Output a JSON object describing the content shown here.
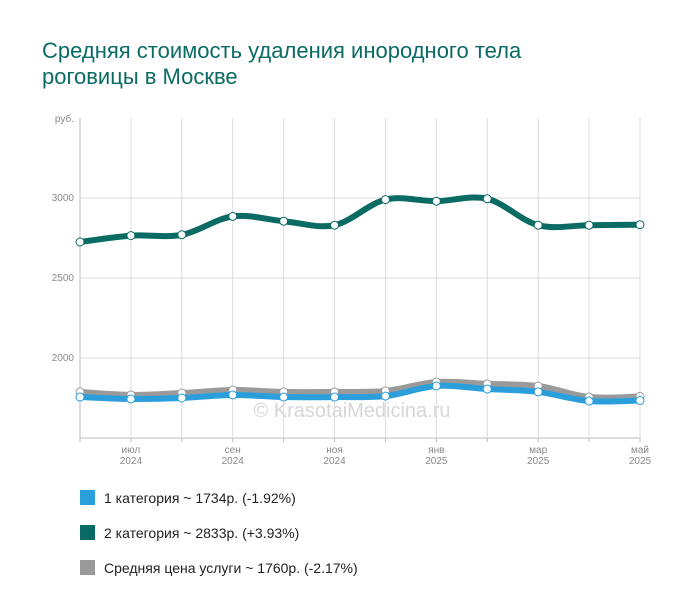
{
  "chart_data": {
    "type": "line",
    "title": [
      "Средняя стоимость удаления инородного тела",
      "роговицы в Москве"
    ],
    "y_unit": "руб.",
    "watermark": "© KrasotaiMedicina.ru",
    "categories": [
      null,
      "июл 2024",
      null,
      "сен 2024",
      null,
      "ноя 2024",
      null,
      "янв 2025",
      null,
      "мар 2025",
      null,
      "май 2025"
    ],
    "series": [
      {
        "name": "1 категория ~ 1734р. (-1.92%)",
        "color": "#2b9fdc",
        "values": [
          1756,
          1744,
          1750,
          1769,
          1756,
          1756,
          1762,
          1825,
          1806,
          1788,
          1731,
          1734
        ]
      },
      {
        "name": "2 категория ~ 2833р. (+3.93%)",
        "color": "#0a6b64",
        "values": [
          2725,
          2765,
          2770,
          2885,
          2855,
          2830,
          2990,
          2980,
          2995,
          2830,
          2830,
          2833
        ]
      },
      {
        "name": "Средняя цена услуги ~ 1760р. (-2.17%)",
        "color": "#9a9a9a",
        "values": [
          1788,
          1769,
          1781,
          1800,
          1788,
          1788,
          1794,
          1850,
          1838,
          1825,
          1756,
          1760
        ]
      }
    ],
    "ylim": [
      1500,
      3500
    ],
    "yticks": [
      2000,
      2500,
      3000
    ],
    "grid": true
  }
}
